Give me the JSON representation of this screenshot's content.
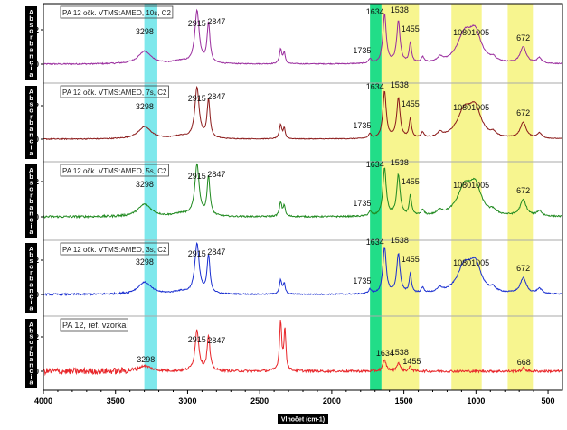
{
  "chart_data": {
    "type": "line",
    "x_axis": {
      "label": "Vlnočet (cm-1)",
      "range": [
        4000,
        400
      ],
      "ticks": [
        4000,
        3500,
        3000,
        2500,
        2000,
        1500,
        1000,
        500
      ],
      "reversed": true
    },
    "y_axis": {
      "label_letters": [
        "A",
        "b",
        "s",
        "o",
        "r",
        "b",
        "a",
        "n",
        "c",
        "i",
        "a"
      ],
      "ticks": [
        "0,0",
        "0,2"
      ]
    },
    "grid": false,
    "highlight_bands": [
      {
        "from": 3300,
        "to": 3210,
        "color": "#7ee8ec"
      },
      {
        "from": 1735,
        "to": 1655,
        "color": "#22dd88"
      },
      {
        "from": 1655,
        "to": 1395,
        "color": "#f7f58f"
      },
      {
        "from": 1170,
        "to": 960,
        "color": "#f7f58f"
      },
      {
        "from": 780,
        "to": 605,
        "color": "#f7f58f"
      }
    ],
    "series": [
      {
        "name": "PA 12 očk. VTMS:AMEO, 10s, C2",
        "color": "#9a2d9e",
        "annotations": [
          {
            "label": "3298",
            "x": 3298
          },
          {
            "label": "2915",
            "x": 2935
          },
          {
            "label": "2847",
            "x": 2800
          },
          {
            "label": "1634",
            "x": 1700
          },
          {
            "label": "1538",
            "x": 1530
          },
          {
            "label": "1455",
            "x": 1455
          },
          {
            "label": "1735",
            "x": 1790
          },
          {
            "label": "1080",
            "x": 1095
          },
          {
            "label": "1005",
            "x": 970
          },
          {
            "label": "672",
            "x": 672
          }
        ]
      },
      {
        "name": "PA 12 očk. VTMS:AMEO, 7s, C2",
        "color": "#8b1a1a",
        "annotations": [
          {
            "label": "3298",
            "x": 3298
          },
          {
            "label": "2915",
            "x": 2935
          },
          {
            "label": "2847",
            "x": 2800
          },
          {
            "label": "1634",
            "x": 1700
          },
          {
            "label": "1538",
            "x": 1530
          },
          {
            "label": "1455",
            "x": 1455
          },
          {
            "label": "1735",
            "x": 1790
          },
          {
            "label": "1080",
            "x": 1095
          },
          {
            "label": "1005",
            "x": 970
          },
          {
            "label": "672",
            "x": 672
          }
        ]
      },
      {
        "name": "PA 12 očk. VTMS:AMEO, 5s, C2",
        "color": "#208a20",
        "annotations": [
          {
            "label": "3298",
            "x": 3298
          },
          {
            "label": "2915",
            "x": 2935
          },
          {
            "label": "2847",
            "x": 2800
          },
          {
            "label": "1634",
            "x": 1700
          },
          {
            "label": "1538",
            "x": 1530
          },
          {
            "label": "1455",
            "x": 1455
          },
          {
            "label": "1735",
            "x": 1790
          },
          {
            "label": "1080",
            "x": 1095
          },
          {
            "label": "1005",
            "x": 970
          },
          {
            "label": "672",
            "x": 672
          }
        ]
      },
      {
        "name": "PA 12 očk. VTMS:AMEO, 3s, C2",
        "color": "#1a2fd0",
        "annotations": [
          {
            "label": "3298",
            "x": 3298
          },
          {
            "label": "2915",
            "x": 2935
          },
          {
            "label": "2847",
            "x": 2800
          },
          {
            "label": "1634",
            "x": 1700
          },
          {
            "label": "1538",
            "x": 1530
          },
          {
            "label": "1455",
            "x": 1455
          },
          {
            "label": "1735",
            "x": 1790
          },
          {
            "label": "1080",
            "x": 1095
          },
          {
            "label": "1005",
            "x": 970
          },
          {
            "label": "672",
            "x": 672
          }
        ]
      },
      {
        "name": "PA 12, ref. vzorka",
        "color": "#e8262a",
        "annotations": [
          {
            "label": "3298",
            "x": 3290
          },
          {
            "label": "2915",
            "x": 2935
          },
          {
            "label": "2847",
            "x": 2800
          },
          {
            "label": "1634",
            "x": 1630
          },
          {
            "label": "1538",
            "x": 1530
          },
          {
            "label": "1455",
            "x": 1445
          },
          {
            "label": "668",
            "x": 668
          }
        ]
      }
    ]
  }
}
